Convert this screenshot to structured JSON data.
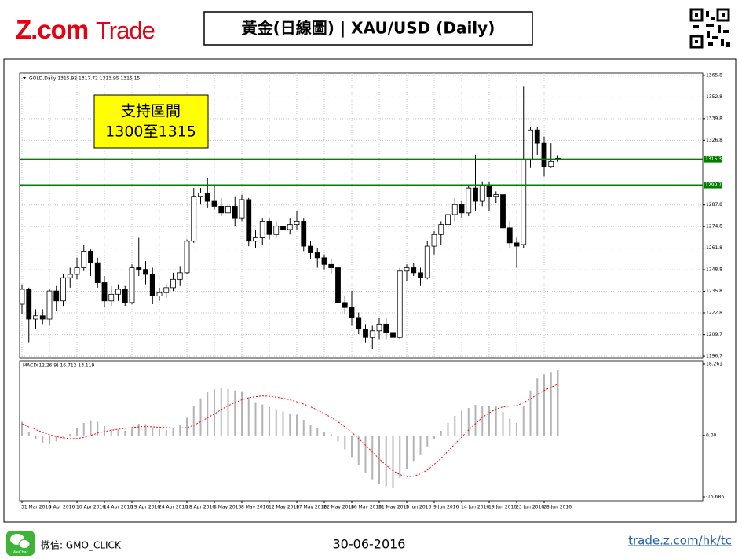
{
  "header": {
    "logo_brand": "Z.com",
    "logo_product": "Trade",
    "title": "黃金(日線圖) | XAU/USD  (Daily)"
  },
  "footer": {
    "wechat_icon_label": "WeChat",
    "wechat": "微信: GMO_CLICK",
    "date": "30-06-2016",
    "link": "trade.z.com/hk/tc"
  },
  "chart_data": [
    {
      "type": "candlestick",
      "symbol_label": "GOLD,Daily  1315.92 1317.72 1313.95 1315.15",
      "annotation_lines": [
        "支持區間",
        "1300至1315"
      ],
      "up_color": "#ffffff",
      "down_color": "#000000",
      "wick_color": "#000000",
      "hlines": [
        1315.3,
        1299.7
      ],
      "hline_color": "#008000",
      "ylim": [
        1195.8,
        1367.2
      ],
      "yticks": [
        1365.8,
        1352.8,
        1339.8,
        1326.8,
        1287.8,
        1274.8,
        1261.8,
        1248.8,
        1235.8,
        1222.8,
        1209.7,
        1196.7
      ],
      "grid": true,
      "open": [
        1228,
        1237,
        1219,
        1221,
        1219,
        1236,
        1230,
        1244,
        1246,
        1250,
        1260,
        1253,
        1241,
        1230,
        1234,
        1237,
        1229,
        1250,
        1249,
        1246,
        1233,
        1235,
        1238,
        1243,
        1247,
        1266,
        1293,
        1295,
        1290,
        1287,
        1283,
        1287,
        1280,
        1291,
        1266,
        1268,
        1278,
        1270,
        1275,
        1273,
        1276,
        1278,
        1263,
        1259,
        1256,
        1252,
        1250,
        1229,
        1226,
        1220,
        1213,
        1208,
        1212,
        1216,
        1211,
        1208,
        1248,
        1250,
        1247,
        1244,
        1263,
        1270,
        1276,
        1282,
        1288,
        1283,
        1298,
        1290,
        1300,
        1293,
        1294,
        1274,
        1265,
        1264,
        1315,
        1333,
        1325,
        1311,
        1315.92
      ],
      "high": [
        1240,
        1238,
        1225,
        1225,
        1237,
        1239,
        1246,
        1250,
        1256,
        1264,
        1261,
        1256,
        1245,
        1239,
        1240,
        1239,
        1252,
        1268,
        1254,
        1250,
        1238,
        1240,
        1247,
        1251,
        1267,
        1298,
        1298,
        1304,
        1299,
        1292,
        1290,
        1293,
        1294,
        1292,
        1273,
        1280,
        1280,
        1278,
        1280,
        1280,
        1284,
        1280,
        1266,
        1262,
        1258,
        1255,
        1252,
        1233,
        1236,
        1223,
        1216,
        1215,
        1220,
        1220,
        1214,
        1250,
        1252,
        1253,
        1250,
        1266,
        1272,
        1278,
        1284,
        1292,
        1290,
        1300,
        1318,
        1302,
        1302,
        1296,
        1296,
        1278,
        1268,
        1359,
        1335,
        1335,
        1329,
        1325,
        1317.72
      ],
      "low": [
        1222,
        1205,
        1213,
        1216,
        1215,
        1224,
        1227,
        1238,
        1243,
        1248,
        1245,
        1238,
        1226,
        1227,
        1230,
        1227,
        1228,
        1245,
        1240,
        1228,
        1230,
        1232,
        1236,
        1239,
        1246,
        1265,
        1288,
        1286,
        1285,
        1281,
        1278,
        1275,
        1278,
        1263,
        1262,
        1264,
        1267,
        1268,
        1272,
        1270,
        1273,
        1260,
        1255,
        1250,
        1249,
        1246,
        1225,
        1222,
        1215,
        1210,
        1205,
        1201,
        1207,
        1207,
        1204,
        1207,
        1242,
        1245,
        1239,
        1243,
        1258,
        1264,
        1272,
        1278,
        1280,
        1281,
        1284,
        1287,
        1284,
        1289,
        1270,
        1262,
        1250,
        1262,
        1310,
        1318,
        1305,
        1310,
        1313.95
      ],
      "close": [
        1237,
        1219,
        1221,
        1219,
        1236,
        1230,
        1244,
        1246,
        1250,
        1260,
        1253,
        1241,
        1230,
        1234,
        1237,
        1229,
        1250,
        1249,
        1246,
        1233,
        1235,
        1238,
        1243,
        1247,
        1266,
        1293,
        1295,
        1290,
        1287,
        1283,
        1287,
        1280,
        1291,
        1266,
        1268,
        1278,
        1270,
        1275,
        1273,
        1276,
        1278,
        1263,
        1259,
        1256,
        1252,
        1250,
        1229,
        1226,
        1220,
        1213,
        1208,
        1212,
        1216,
        1211,
        1208,
        1248,
        1250,
        1247,
        1244,
        1263,
        1270,
        1276,
        1282,
        1288,
        1283,
        1298,
        1290,
        1300,
        1293,
        1294,
        1274,
        1265,
        1263,
        1315,
        1333,
        1325,
        1311,
        1314,
        1315.15
      ]
    },
    {
      "type": "macd",
      "indicator_label": "MACD(12,26,9) 16.712 13.119",
      "color": "#b4b4b4",
      "signal_color": "#ff0000",
      "ylim": [
        -16.69,
        19.06
      ],
      "yticks": [
        18.261,
        {
          "value": 0,
          "label": "0.00"
        },
        -15.686
      ],
      "categories": [
        "31 Mar 2016",
        null,
        null,
        null,
        "5 Apr 2016",
        null,
        null,
        null,
        "10 Apr 2016",
        null,
        null,
        null,
        "14 Apr 2016",
        null,
        null,
        null,
        "19 Apr 2016",
        null,
        null,
        null,
        "24 Apr 2016",
        null,
        null,
        null,
        "28 Apr 2016",
        null,
        null,
        null,
        "3 May 2016",
        null,
        null,
        null,
        "8 May 2016",
        null,
        null,
        null,
        "12 May 2016",
        null,
        null,
        null,
        "17 May 2016",
        null,
        null,
        null,
        "22 May 2016",
        null,
        null,
        null,
        "26 May 2016",
        null,
        null,
        null,
        "31 May 2016",
        null,
        null,
        null,
        "5 Jun 2016",
        null,
        null,
        null,
        "9 Jun 2016",
        null,
        null,
        null,
        "14 Jun 2016",
        null,
        null,
        null,
        "19 Jun 2016",
        null,
        null,
        null,
        "23 Jun 2016",
        null,
        null,
        null,
        "28 Jun 2016",
        null,
        null
      ],
      "values": [
        3.5,
        1.0,
        -0.8,
        -1.9,
        -2.2,
        -1.5,
        -0.8,
        0.4,
        1.8,
        3.2,
        3.9,
        3.5,
        2.4,
        1.6,
        1.5,
        1.2,
        1.7,
        3.0,
        2.9,
        2.0,
        1.6,
        1.4,
        1.9,
        2.6,
        4.5,
        7.5,
        9.5,
        11.0,
        11.8,
        12.2,
        11.9,
        11.5,
        11.3,
        9.8,
        8.5,
        7.9,
        7.2,
        6.7,
        6.1,
        5.6,
        5.3,
        4.0,
        2.7,
        1.8,
        1.0,
        0.3,
        -1.5,
        -3.5,
        -5.5,
        -7.5,
        -9.5,
        -11.2,
        -12.3,
        -13.0,
        -13.5,
        -10.8,
        -8.5,
        -6.5,
        -5.0,
        -2.8,
        -0.8,
        1.2,
        3.2,
        5.0,
        6.3,
        7.0,
        7.8,
        7.6,
        7.5,
        7.4,
        6.0,
        4.3,
        3.2,
        7.5,
        11.5,
        14.6,
        15.6,
        16.2,
        16.712
      ],
      "signal_values": [
        3.0,
        2.2,
        1.5,
        0.8,
        0.2,
        -0.3,
        -0.6,
        -0.8,
        -0.8,
        -0.5,
        0.0,
        0.6,
        1.0,
        1.3,
        1.6,
        1.8,
        2.0,
        2.2,
        2.3,
        2.2,
        2.1,
        2.0,
        1.9,
        1.9,
        2.0,
        2.6,
        3.5,
        4.5,
        5.5,
        6.6,
        7.6,
        8.4,
        9.1,
        9.6,
        9.9,
        10.1,
        10.0,
        9.8,
        9.5,
        9.1,
        8.6,
        8.0,
        7.3,
        6.5,
        5.6,
        4.6,
        3.5,
        2.2,
        0.8,
        -0.8,
        -2.5,
        -4.2,
        -6.0,
        -7.6,
        -9.0,
        -10.0,
        -10.5,
        -10.4,
        -9.8,
        -8.8,
        -7.4,
        -5.8,
        -4.0,
        -2.2,
        -0.4,
        1.4,
        3.0,
        4.6,
        5.8,
        6.7,
        7.3,
        7.5,
        7.6,
        8.4,
        9.3,
        10.5,
        11.5,
        12.3,
        13.119
      ]
    }
  ]
}
